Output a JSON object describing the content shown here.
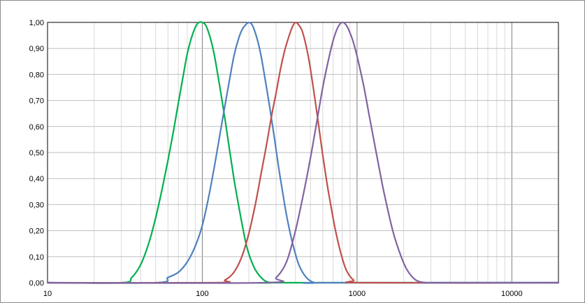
{
  "chart_data": {
    "type": "line",
    "title": "",
    "xlabel": "",
    "ylabel": "",
    "x_scale": "log",
    "xlim": [
      10,
      20000
    ],
    "ylim": [
      0,
      1
    ],
    "grid": true,
    "legend": "none",
    "x_tick_labels": [
      "10",
      "100",
      "1000",
      "10000"
    ],
    "x_tick_values": [
      10,
      100,
      1000,
      10000
    ],
    "y_tick_labels": [
      "0,00",
      "0,10",
      "0,20",
      "0,30",
      "0,40",
      "0,50",
      "0,60",
      "0,70",
      "0,80",
      "0,90",
      "1,00"
    ],
    "y_tick_values": [
      0,
      0.1,
      0.2,
      0.3,
      0.4,
      0.5,
      0.6,
      0.7,
      0.8,
      0.9,
      1.0
    ],
    "series": [
      {
        "color": "#00b050",
        "x": [
          30,
          35,
          40,
          45,
          50,
          55,
          60,
          65,
          70,
          75,
          80,
          85,
          90,
          95,
          100,
          105,
          110,
          115,
          120,
          125,
          130,
          140,
          150,
          160,
          170,
          180,
          190,
          200,
          220,
          250,
          280,
          320
        ],
        "values": [
          0.0,
          0.02,
          0.07,
          0.15,
          0.25,
          0.36,
          0.47,
          0.58,
          0.69,
          0.79,
          0.88,
          0.94,
          0.98,
          1.0,
          1.0,
          0.99,
          0.96,
          0.92,
          0.87,
          0.81,
          0.75,
          0.63,
          0.51,
          0.4,
          0.31,
          0.23,
          0.16,
          0.11,
          0.05,
          0.01,
          0.0,
          0.0
        ]
      },
      {
        "color": "#4f81bd",
        "x": [
          50,
          60,
          70,
          80,
          90,
          100,
          110,
          120,
          130,
          140,
          150,
          160,
          170,
          180,
          190,
          200,
          210,
          220,
          230,
          240,
          250,
          270,
          290,
          310,
          330,
          350,
          380,
          420,
          470,
          530,
          600
        ],
        "values": [
          0.0,
          0.02,
          0.04,
          0.08,
          0.14,
          0.22,
          0.33,
          0.45,
          0.57,
          0.68,
          0.78,
          0.87,
          0.93,
          0.97,
          0.99,
          1.0,
          0.99,
          0.96,
          0.92,
          0.87,
          0.81,
          0.69,
          0.57,
          0.45,
          0.35,
          0.26,
          0.16,
          0.07,
          0.02,
          0.0,
          0.0
        ]
      },
      {
        "color": "#c0504d",
        "x": [
          120,
          140,
          160,
          180,
          200,
          220,
          240,
          260,
          280,
          300,
          320,
          340,
          360,
          380,
          400,
          420,
          440,
          460,
          480,
          500,
          530,
          560,
          600,
          640,
          680,
          720,
          780,
          850,
          950,
          1100
        ],
        "values": [
          0.0,
          0.01,
          0.04,
          0.1,
          0.19,
          0.3,
          0.42,
          0.53,
          0.64,
          0.73,
          0.82,
          0.89,
          0.94,
          0.98,
          1.0,
          0.99,
          0.97,
          0.93,
          0.88,
          0.82,
          0.72,
          0.62,
          0.49,
          0.38,
          0.29,
          0.21,
          0.12,
          0.05,
          0.01,
          0.0
        ]
      },
      {
        "color": "#8064a2",
        "x": [
          250,
          300,
          350,
          400,
          450,
          500,
          550,
          600,
          650,
          700,
          750,
          800,
          850,
          900,
          950,
          1000,
          1100,
          1200,
          1300,
          1400,
          1500,
          1700,
          1900,
          2100,
          2400,
          2800,
          3200
        ],
        "values": [
          0.0,
          0.02,
          0.08,
          0.2,
          0.34,
          0.48,
          0.62,
          0.75,
          0.85,
          0.93,
          0.98,
          1.0,
          0.99,
          0.96,
          0.92,
          0.87,
          0.76,
          0.64,
          0.53,
          0.43,
          0.34,
          0.2,
          0.11,
          0.05,
          0.01,
          0.0,
          0.0
        ]
      }
    ]
  }
}
